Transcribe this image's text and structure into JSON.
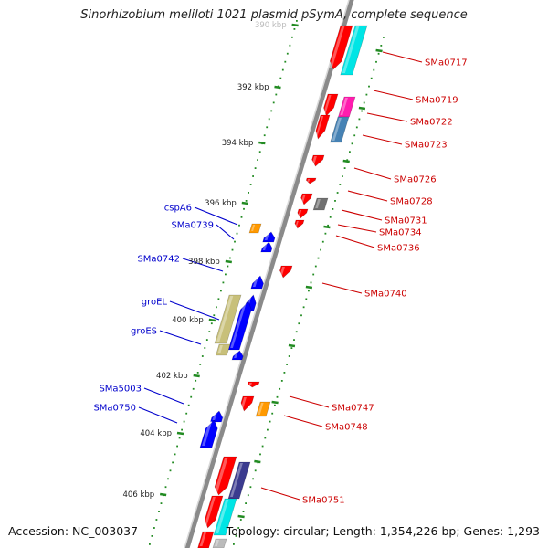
{
  "title": "Sinorhizobium meliloti 1021 plasmid pSymA, complete sequence",
  "footer": {
    "accession": "Accession: NC_003037",
    "topology": "Topology: circular; Length: 1,354,226 bp; Genes: 1,293"
  },
  "ruler": {
    "ticks": [
      "390 kbp",
      "392 kbp",
      "394 kbp",
      "396 kbp",
      "398 kbp",
      "400 kbp",
      "402 kbp",
      "404 kbp",
      "406 kbp"
    ]
  },
  "genes_right": [
    "SMa0717",
    "SMa0719",
    "SMa0722",
    "SMa0723",
    "SMa0726",
    "SMa0728",
    "SMa0731",
    "SMa0734",
    "SMa0736",
    "SMa0740",
    "SMa0747",
    "SMa0748",
    "SMa0751"
  ],
  "genes_left": [
    "cspA6",
    "SMa0739",
    "SMa0742",
    "groEL",
    "groES",
    "SMa5003",
    "SMa0750"
  ],
  "colors": {
    "forward_strand": "#ff0000",
    "reverse_strand": "#0000ff",
    "right_label": "#cc0000",
    "left_label": "#0000cc",
    "tick": "#228b22",
    "backbone": "#8a8a8a",
    "cyan_feature": "#00e5e5",
    "magenta_feature": "#ff1cae",
    "slate_feature": "#4682b4",
    "orange_feature": "#ff9900",
    "gray_feature": "#707070",
    "olive_feature": "#c8c07a"
  }
}
